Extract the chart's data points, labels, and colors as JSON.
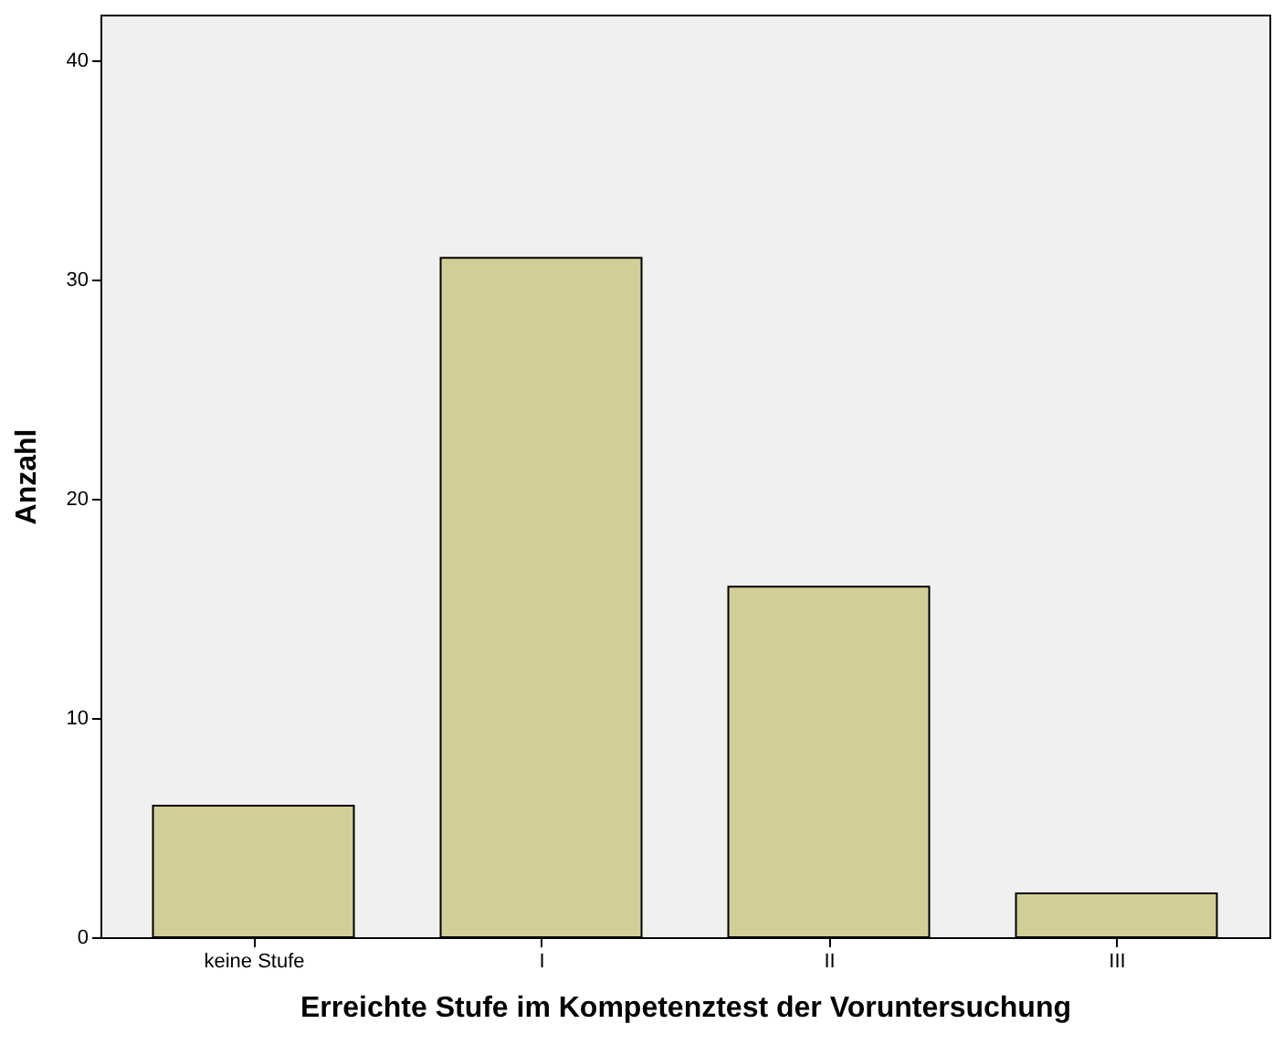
{
  "chart_data": {
    "type": "bar",
    "xlabel": "Erreichte Stufe im Kompetenztest der Voruntersuchung",
    "ylabel": "Anzahl",
    "categories": [
      "keine Stufe",
      "I",
      "II",
      "III"
    ],
    "values": [
      6,
      31,
      16,
      2
    ],
    "color": "#d3ce97",
    "ylim": [
      0,
      42.1
    ],
    "yticks": [
      0,
      10,
      20,
      30,
      40
    ],
    "grid": false
  }
}
